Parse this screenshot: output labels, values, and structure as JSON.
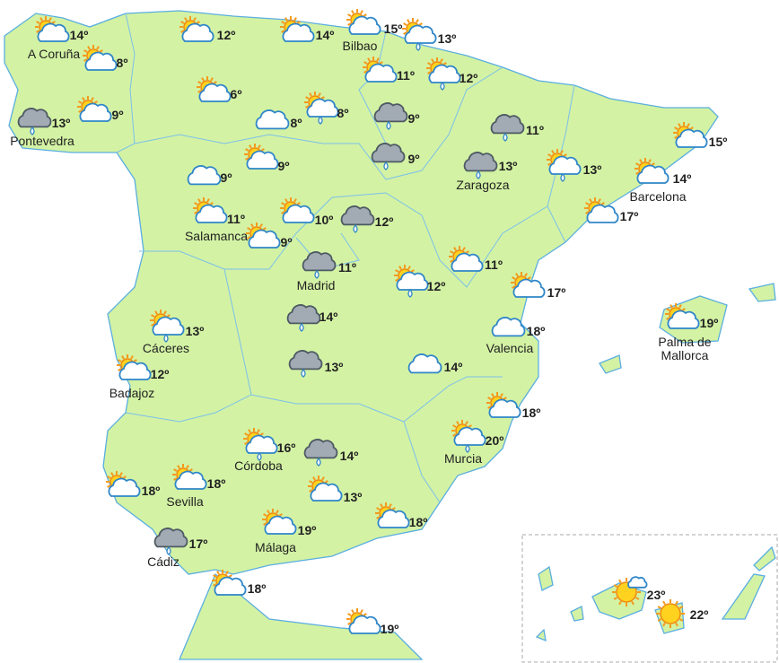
{
  "stations": [
    {
      "temp": "14º",
      "city": [
        "A Coruña"
      ]
    },
    {
      "temp": "8º"
    },
    {
      "temp": "13º",
      "city": [
        "Pontevedra"
      ]
    },
    {
      "temp": "9º"
    },
    {
      "temp": "12º"
    },
    {
      "temp": "14º"
    },
    {
      "temp": "15º",
      "city": [
        "Bilbao"
      ]
    },
    {
      "temp": "13º"
    },
    {
      "temp": "11º"
    },
    {
      "temp": "12º"
    },
    {
      "temp": "6º"
    },
    {
      "temp": "8º"
    },
    {
      "temp": "8º"
    },
    {
      "temp": "9º"
    },
    {
      "temp": "9º"
    },
    {
      "temp": "11º"
    },
    {
      "temp": "13º",
      "city": [
        "Zaragoza"
      ]
    },
    {
      "temp": "9º"
    },
    {
      "temp": "9º"
    },
    {
      "temp": "11º",
      "city": [
        "Salamanca"
      ]
    },
    {
      "temp": "9º"
    },
    {
      "temp": "10º"
    },
    {
      "temp": "12º"
    },
    {
      "temp": "11º",
      "city": [
        "Madrid"
      ]
    },
    {
      "temp": "12º"
    },
    {
      "temp": "11º"
    },
    {
      "temp": "13º"
    },
    {
      "temp": "15º"
    },
    {
      "temp": "14º",
      "city": [
        "Barcelona"
      ]
    },
    {
      "temp": "17º"
    },
    {
      "temp": "17º"
    },
    {
      "temp": "18º",
      "city": [
        "Valencia"
      ]
    },
    {
      "temp": "19º",
      "city": [
        "Palma de",
        "Mallorca"
      ]
    },
    {
      "temp": "13º",
      "city": [
        "Cáceres"
      ]
    },
    {
      "temp": "12º",
      "city": [
        "Badajoz"
      ]
    },
    {
      "temp": "14º"
    },
    {
      "temp": "13º"
    },
    {
      "temp": "14º"
    },
    {
      "temp": "18º"
    },
    {
      "temp": "20º",
      "city": [
        "Murcia"
      ]
    },
    {
      "temp": "16º",
      "city": [
        "Córdoba"
      ]
    },
    {
      "temp": "14º"
    },
    {
      "temp": "18º"
    },
    {
      "temp": "18º",
      "city": [
        "Sevilla"
      ]
    },
    {
      "temp": "13º"
    },
    {
      "temp": "18º"
    },
    {
      "temp": "19º",
      "city": [
        "Málaga"
      ]
    },
    {
      "temp": "17º",
      "city": [
        "Cádiz"
      ]
    },
    {
      "temp": "18º"
    },
    {
      "temp": "19º"
    },
    {
      "temp": "23º"
    },
    {
      "temp": "22º"
    }
  ]
}
